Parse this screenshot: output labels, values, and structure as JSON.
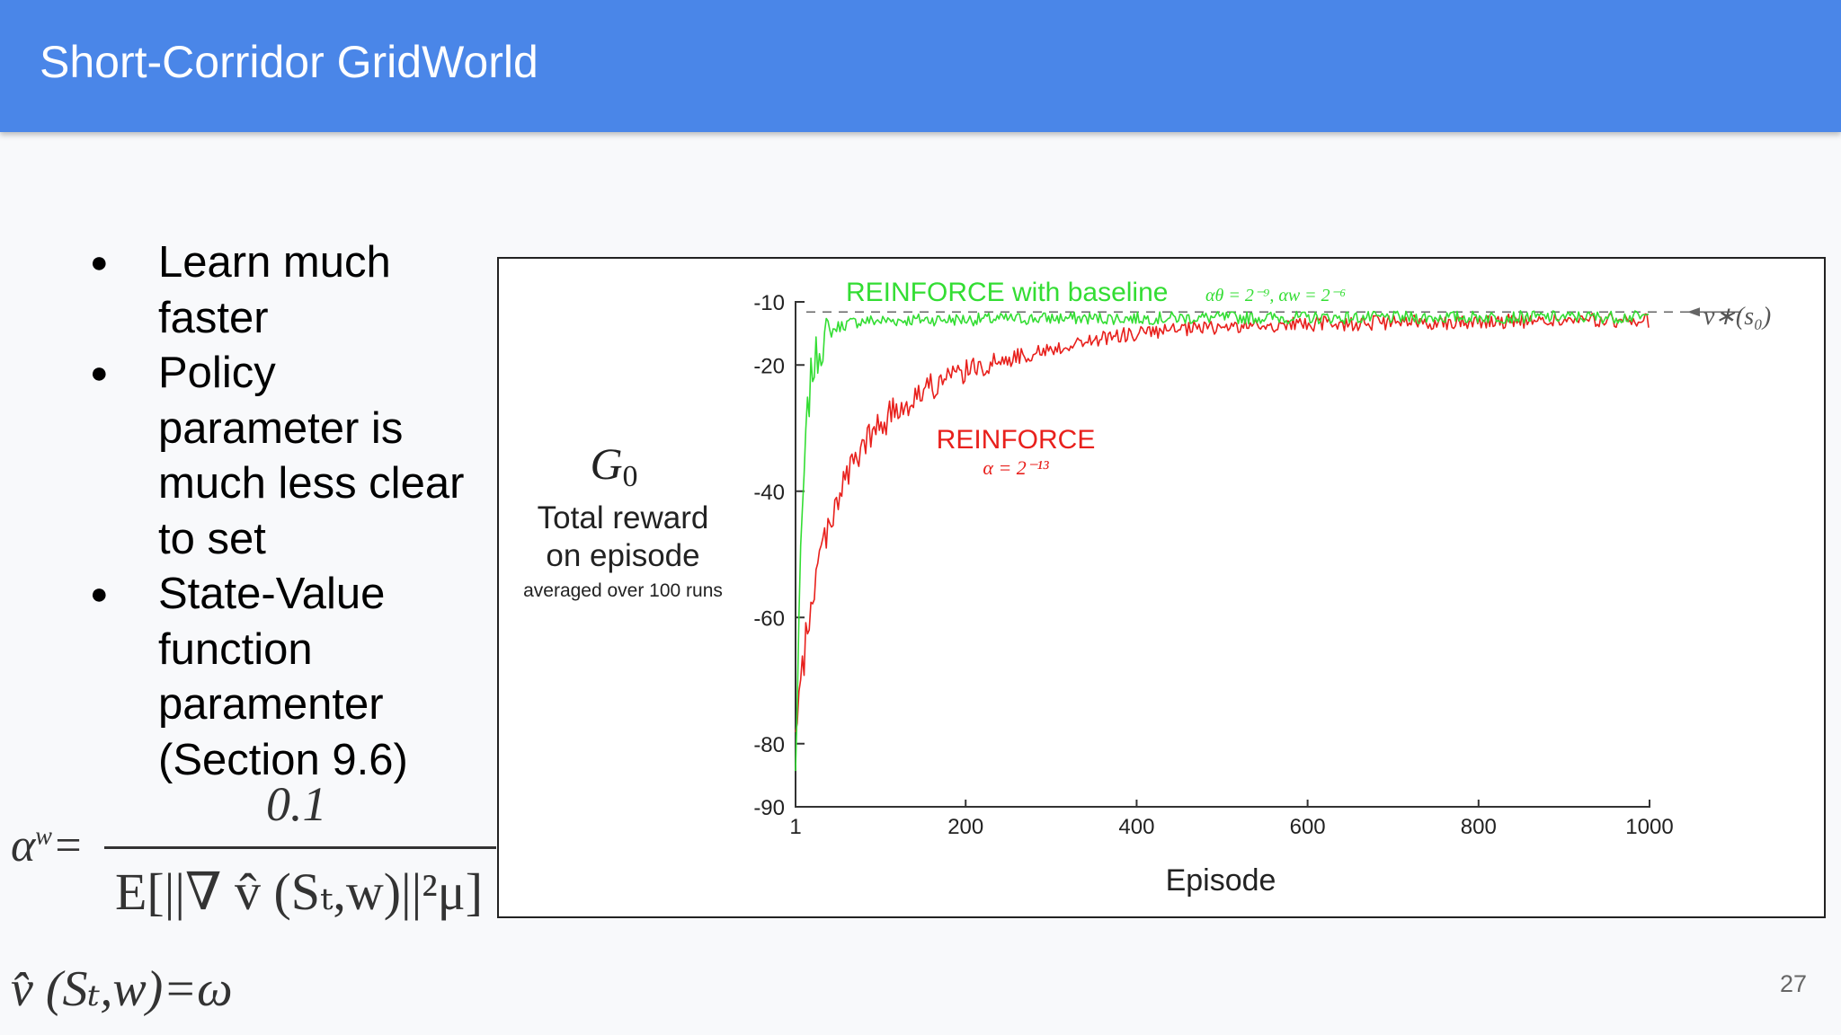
{
  "header": {
    "title": "Short-Corridor GridWorld"
  },
  "bullets": [
    "Learn much faster",
    "Policy parameter is much less clear to set",
    "State-Value function paramenter (Section 9.6)"
  ],
  "formulas": {
    "alpha_w_lhs": "α",
    "alpha_w_sup": "w",
    "alpha_w_eq": "=",
    "alpha_w_numerator": "0.1",
    "alpha_w_denominator": "E[||∇ v̂ (Sₜ,w)||²μ]",
    "vhat_eq": "v̂ (Sₜ,w)=ω"
  },
  "page_number": "27",
  "colors": {
    "header": "#4a86e8",
    "green": "#33dd33",
    "red": "#e8201c"
  },
  "chart_data": {
    "type": "line",
    "xlabel": "Episode",
    "ylabel": "G",
    "ylabel_sub": "0",
    "ylabel_line2": "Total reward",
    "ylabel_line3": "on episode",
    "ylabel_line4": "averaged over 100 runs",
    "xlim": [
      1,
      1000
    ],
    "ylim": [
      -90,
      -10
    ],
    "xticks": [
      1,
      200,
      400,
      600,
      800,
      1000
    ],
    "yticks": [
      -10,
      -20,
      -40,
      -60,
      -80,
      -90
    ],
    "reference_line": {
      "y": -11.6,
      "label": "v∗(s₀)"
    },
    "series": [
      {
        "name": "REINFORCE with baseline",
        "annotation": "αθ = 2⁻⁹, αw = 2⁻⁶",
        "color": "#33dd33",
        "x": [
          1,
          5,
          10,
          15,
          20,
          30,
          40,
          50,
          60,
          80,
          100,
          150,
          200,
          300,
          400,
          500,
          600,
          700,
          800,
          900,
          1000
        ],
        "y": [
          -85,
          -60,
          -40,
          -28,
          -21,
          -17,
          -15,
          -14,
          -13.5,
          -13,
          -13,
          -12.8,
          -12.8,
          -12.6,
          -12.6,
          -12.5,
          -12.5,
          -12.5,
          -12.4,
          -12.4,
          -12.4
        ]
      },
      {
        "name": "REINFORCE",
        "annotation": "α = 2⁻¹³",
        "color": "#e8201c",
        "x": [
          1,
          10,
          20,
          30,
          40,
          50,
          60,
          80,
          100,
          120,
          150,
          200,
          250,
          300,
          350,
          400,
          450,
          500,
          600,
          700,
          800,
          900,
          1000
        ],
        "y": [
          -80,
          -67,
          -57,
          -50,
          -45,
          -41,
          -38,
          -33,
          -29.5,
          -27,
          -24,
          -21,
          -19,
          -17.5,
          -16,
          -15,
          -14.5,
          -14,
          -13.5,
          -13.3,
          -13.1,
          -13,
          -13
        ]
      }
    ]
  }
}
